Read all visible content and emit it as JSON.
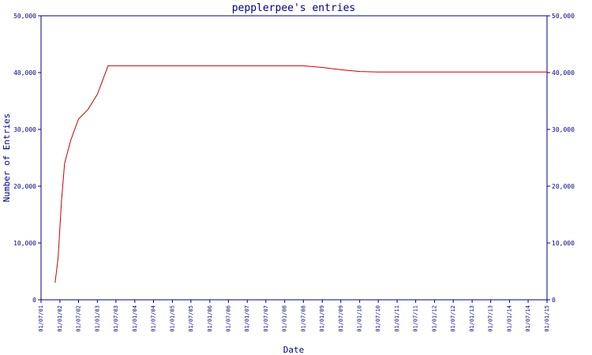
{
  "chart_data": {
    "type": "line",
    "title": "pepplerpee's entries",
    "xlabel": "Date",
    "ylabel": "Number of Entries",
    "x_ticks": [
      "01/07/01",
      "01/01/02",
      "01/07/02",
      "01/01/03",
      "01/07/03",
      "01/01/04",
      "01/07/04",
      "01/01/05",
      "01/07/05",
      "01/01/06",
      "01/07/06",
      "01/01/07",
      "01/07/07",
      "01/01/08",
      "01/07/08",
      "01/01/09",
      "01/07/09",
      "01/01/10",
      "01/07/10",
      "01/01/11",
      "01/07/11",
      "01/01/12",
      "01/07/12",
      "01/01/13",
      "01/07/13",
      "01/01/14",
      "01/07/14",
      "01/01/15"
    ],
    "y_ticks": [
      "0",
      "10,000",
      "20,000",
      "30,000",
      "40,000",
      "50,000"
    ],
    "ylim": [
      0,
      50000
    ],
    "series": [
      {
        "color": "#cc0000",
        "x": [
          "2001-11-15",
          "2001-12-15",
          "2002-01-15",
          "2002-02-15",
          "2002-04-15",
          "2002-07-01",
          "2002-10-01",
          "2003-01-01",
          "2003-04-15",
          "2003-07-01",
          "2004-01-01",
          "2005-01-01",
          "2006-01-01",
          "2007-01-01",
          "2008-01-01",
          "2008-07-01",
          "2009-01-01",
          "2009-07-01",
          "2010-01-01",
          "2010-07-01",
          "2011-07-01",
          "2012-07-01",
          "2013-07-01",
          "2014-07-01",
          "2015-01-01"
        ],
        "values": [
          3000,
          7500,
          17000,
          24000,
          28000,
          31800,
          33500,
          36200,
          41200,
          41200,
          41200,
          41200,
          41200,
          41200,
          41200,
          41200,
          40900,
          40500,
          40200,
          40100,
          40100,
          40100,
          40100,
          40100,
          40100
        ]
      }
    ],
    "grid": false,
    "colors": {
      "axis": "#000080",
      "line": "#cc0000"
    }
  }
}
